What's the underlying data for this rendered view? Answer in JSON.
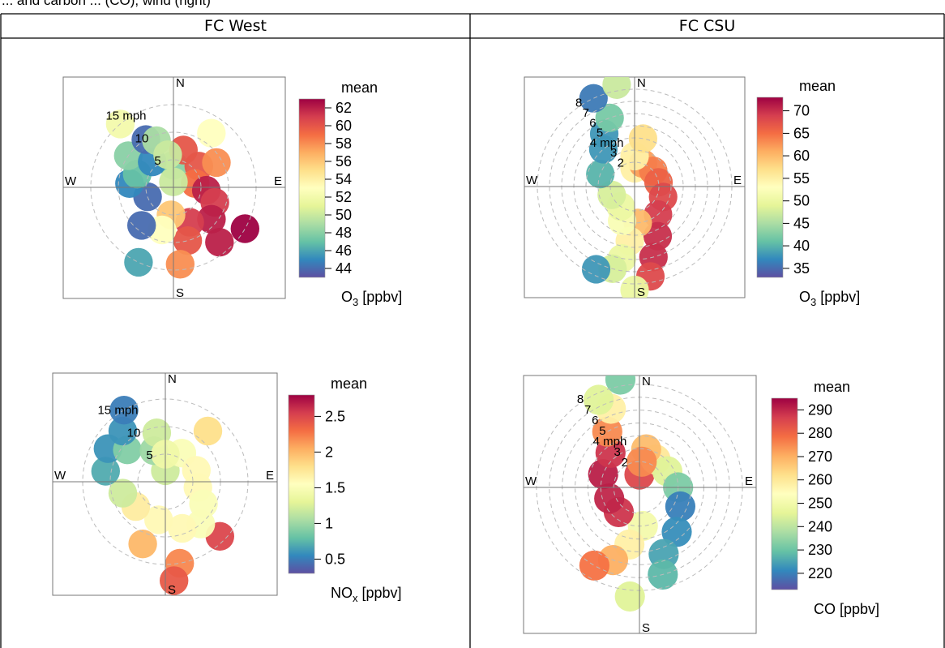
{
  "caption": "... and carbon ... (CO), wind (right)",
  "columns": [
    "FC West",
    "FC CSU"
  ],
  "colors": {
    "palette": [
      "#5e4fa2",
      "#3288bd",
      "#66c2a5",
      "#abdda4",
      "#e6f598",
      "#ffffbf",
      "#fee08b",
      "#fdae61",
      "#f46d43",
      "#d53e4f",
      "#9e0142"
    ],
    "grid": "#bbbbbb",
    "axis": "#777777",
    "border": "#000000"
  },
  "chart_data": [
    {
      "type": "heatmap",
      "subtype": "polar-plot",
      "site": "FC West",
      "pollutant": "O3",
      "compass": [
        "N",
        "E",
        "S",
        "W"
      ],
      "speed_rings": [
        5,
        10,
        15
      ],
      "speed_labels": [
        "5",
        "10",
        "15 mph"
      ],
      "ring_max": 20,
      "legend": {
        "title": "mean",
        "label": "O3 [ppbv]",
        "label_main": "O",
        "label_sub": "3",
        "label_unit": " [ppbv]",
        "ticks": [
          62,
          60,
          58,
          56,
          54,
          52,
          50,
          48,
          46,
          44
        ],
        "min": 43,
        "max": 63
      },
      "points": [
        {
          "dir": 0,
          "ws": 4,
          "v": 48
        },
        {
          "dir": 15,
          "ws": 7,
          "v": 60
        },
        {
          "dir": 35,
          "ws": 12,
          "v": 53
        },
        {
          "dir": 50,
          "ws": 6,
          "v": 60
        },
        {
          "dir": 60,
          "ws": 9,
          "v": 58
        },
        {
          "dir": 80,
          "ws": 4,
          "v": 59
        },
        {
          "dir": 95,
          "ws": 6,
          "v": 62
        },
        {
          "dir": 110,
          "ws": 8,
          "v": 61
        },
        {
          "dir": 130,
          "ws": 9,
          "v": 62
        },
        {
          "dir": 140,
          "ws": 13,
          "v": 62
        },
        {
          "dir": 120,
          "ws": 15,
          "v": 63
        },
        {
          "dir": 155,
          "ws": 7,
          "v": 61
        },
        {
          "dir": 165,
          "ws": 10,
          "v": 60
        },
        {
          "dir": 175,
          "ws": 14,
          "v": 58
        },
        {
          "dir": 185,
          "ws": 5,
          "v": 56
        },
        {
          "dir": 195,
          "ws": 8,
          "v": 53
        },
        {
          "dir": 205,
          "ws": 15,
          "v": 46
        },
        {
          "dir": 220,
          "ws": 9,
          "v": 44
        },
        {
          "dir": 250,
          "ws": 5,
          "v": 44
        },
        {
          "dir": 275,
          "ws": 8,
          "v": 45
        },
        {
          "dir": 290,
          "ws": 7,
          "v": 47
        },
        {
          "dir": 305,
          "ws": 10,
          "v": 48
        },
        {
          "dir": 320,
          "ws": 6,
          "v": 45
        },
        {
          "dir": 330,
          "ws": 10,
          "v": 44
        },
        {
          "dir": 320,
          "ws": 15,
          "v": 52
        },
        {
          "dir": 340,
          "ws": 9,
          "v": 49
        },
        {
          "dir": 350,
          "ws": 6,
          "v": 50
        },
        {
          "dir": 0,
          "ws": 1,
          "v": 50
        }
      ]
    },
    {
      "type": "heatmap",
      "subtype": "polar-plot",
      "site": "FC CSU",
      "pollutant": "O3",
      "compass": [
        "N",
        "E",
        "S",
        "W"
      ],
      "speed_rings": [
        2,
        3,
        4,
        5,
        6,
        7,
        8
      ],
      "speed_labels": [
        "2",
        "3",
        "4 mph",
        "5",
        "6",
        "7",
        "8"
      ],
      "ring_max": 9,
      "legend": {
        "title": "mean",
        "label": "O3 [ppbv]",
        "label_main": "O",
        "label_sub": "3",
        "label_unit": " [ppbv]",
        "ticks": [
          70,
          65,
          60,
          55,
          50,
          45,
          40,
          35
        ],
        "min": 33,
        "max": 73
      },
      "points": [
        {
          "dir": 0,
          "ws": 1.5,
          "v": 55
        },
        {
          "dir": 20,
          "ws": 2,
          "v": 62
        },
        {
          "dir": 50,
          "ws": 2,
          "v": 64
        },
        {
          "dir": 80,
          "ws": 2,
          "v": 66
        },
        {
          "dir": 110,
          "ws": 2.5,
          "v": 68
        },
        {
          "dir": 140,
          "ws": 3,
          "v": 69
        },
        {
          "dir": 155,
          "ws": 4.5,
          "v": 70
        },
        {
          "dir": 165,
          "ws": 6,
          "v": 70
        },
        {
          "dir": 170,
          "ws": 7.5,
          "v": 68
        },
        {
          "dir": 175,
          "ws": 3,
          "v": 60
        },
        {
          "dir": 185,
          "ws": 4.5,
          "v": 55
        },
        {
          "dir": 190,
          "ws": 6,
          "v": 50
        },
        {
          "dir": 195,
          "ws": 7,
          "v": 48
        },
        {
          "dir": 180,
          "ws": 8.5,
          "v": 50
        },
        {
          "dir": 205,
          "ws": 7.5,
          "v": 38
        },
        {
          "dir": 200,
          "ws": 3,
          "v": 52
        },
        {
          "dir": 215,
          "ws": 2,
          "v": 50
        },
        {
          "dir": 250,
          "ws": 2,
          "v": 48
        },
        {
          "dir": 290,
          "ws": 3,
          "v": 40
        },
        {
          "dir": 320,
          "ws": 4,
          "v": 38
        },
        {
          "dir": 330,
          "ws": 5,
          "v": 38
        },
        {
          "dir": 340,
          "ws": 6,
          "v": 42
        },
        {
          "dir": 335,
          "ws": 8,
          "v": 36
        },
        {
          "dir": 350,
          "ws": 8.5,
          "v": 47
        },
        {
          "dir": 0,
          "ws": 2.5,
          "v": 55
        },
        {
          "dir": 10,
          "ws": 4,
          "v": 57
        }
      ]
    },
    {
      "type": "heatmap",
      "subtype": "polar-plot",
      "site": "FC West",
      "pollutant": "NOx",
      "compass": [
        "N",
        "E",
        "S",
        "W"
      ],
      "speed_rings": [
        5,
        10,
        15
      ],
      "speed_labels": [
        "5",
        "10",
        "15 mph"
      ],
      "ring_max": 20,
      "legend": {
        "title": "mean",
        "label": "NOx [ppbv]",
        "label_main": "NO",
        "label_sub": "x",
        "label_unit": " [ppbv]",
        "ticks": [
          2.5,
          2,
          1.5,
          1,
          0.5
        ],
        "min": 0.3,
        "max": 2.8
      },
      "points": [
        {
          "dir": 0,
          "ws": 2,
          "v": 1.2
        },
        {
          "dir": 30,
          "ws": 6,
          "v": 1.5
        },
        {
          "dir": 40,
          "ws": 12,
          "v": 1.8
        },
        {
          "dir": 70,
          "ws": 6,
          "v": 1.6
        },
        {
          "dir": 100,
          "ws": 6,
          "v": 1.6
        },
        {
          "dir": 120,
          "ws": 8,
          "v": 1.5
        },
        {
          "dir": 135,
          "ws": 14,
          "v": 2.5
        },
        {
          "dir": 140,
          "ws": 10,
          "v": 1.5
        },
        {
          "dir": 160,
          "ws": 9,
          "v": 1.6
        },
        {
          "dir": 170,
          "ws": 15,
          "v": 2.2
        },
        {
          "dir": 175,
          "ws": 18,
          "v": 2.4
        },
        {
          "dir": 190,
          "ws": 7,
          "v": 1.6
        },
        {
          "dir": 200,
          "ws": 12,
          "v": 2.0
        },
        {
          "dir": 230,
          "ws": 7,
          "v": 1.7
        },
        {
          "dir": 255,
          "ws": 8,
          "v": 1.2
        },
        {
          "dir": 280,
          "ws": 11,
          "v": 0.7
        },
        {
          "dir": 300,
          "ws": 12,
          "v": 0.6
        },
        {
          "dir": 310,
          "ws": 9,
          "v": 0.9
        },
        {
          "dir": 320,
          "ws": 12,
          "v": 0.6
        },
        {
          "dir": 330,
          "ws": 15,
          "v": 0.5
        },
        {
          "dir": 340,
          "ws": 6,
          "v": 1.0
        },
        {
          "dir": 350,
          "ws": 9,
          "v": 1.2
        },
        {
          "dir": 0,
          "ws": 5,
          "v": 1.4
        }
      ]
    },
    {
      "type": "heatmap",
      "subtype": "polar-plot",
      "site": "FC CSU",
      "pollutant": "CO",
      "compass": [
        "N",
        "E",
        "S",
        "W"
      ],
      "speed_rings": [
        2,
        3,
        4,
        5,
        6,
        7,
        8
      ],
      "speed_labels": [
        "2",
        "3",
        "4 mph",
        "5",
        "6",
        "7",
        "8"
      ],
      "ring_max": 9,
      "legend": {
        "title": "mean",
        "label": "CO [ppbv]",
        "label_main": "CO",
        "label_sub": "",
        "label_unit": " [ppbv]",
        "ticks": [
          290,
          280,
          270,
          260,
          250,
          240,
          230,
          220
        ],
        "min": 213,
        "max": 295
      },
      "points": [
        {
          "dir": 0,
          "ws": 1,
          "v": 285
        },
        {
          "dir": 30,
          "ws": 2.5,
          "v": 260
        },
        {
          "dir": 60,
          "ws": 2.5,
          "v": 245
        },
        {
          "dir": 90,
          "ws": 3,
          "v": 232
        },
        {
          "dir": 115,
          "ws": 3.5,
          "v": 220
        },
        {
          "dir": 140,
          "ws": 4.5,
          "v": 222
        },
        {
          "dir": 160,
          "ws": 5.5,
          "v": 225
        },
        {
          "dir": 165,
          "ws": 7,
          "v": 228
        },
        {
          "dir": 175,
          "ws": 3,
          "v": 250
        },
        {
          "dir": 190,
          "ws": 4.5,
          "v": 258
        },
        {
          "dir": 200,
          "ws": 6,
          "v": 270
        },
        {
          "dir": 210,
          "ws": 7,
          "v": 278
        },
        {
          "dir": 185,
          "ws": 8.5,
          "v": 245
        },
        {
          "dir": 220,
          "ws": 2.5,
          "v": 288
        },
        {
          "dir": 250,
          "ws": 2.5,
          "v": 290
        },
        {
          "dir": 290,
          "ws": 3,
          "v": 291
        },
        {
          "dir": 320,
          "ws": 3.5,
          "v": 288
        },
        {
          "dir": 330,
          "ws": 5,
          "v": 275
        },
        {
          "dir": 340,
          "ws": 6.5,
          "v": 258
        },
        {
          "dir": 335,
          "ws": 7.5,
          "v": 245
        },
        {
          "dir": 350,
          "ws": 8.5,
          "v": 232
        },
        {
          "dir": 10,
          "ws": 3,
          "v": 268
        },
        {
          "dir": 5,
          "ws": 2,
          "v": 275
        }
      ]
    }
  ]
}
